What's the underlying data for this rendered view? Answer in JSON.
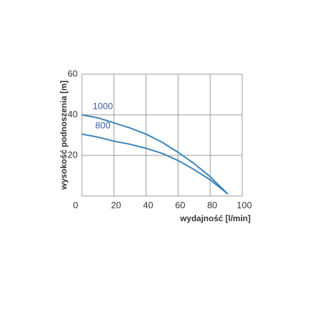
{
  "chart_data": {
    "type": "line",
    "y_label": "wysokość podnoszenia [m]",
    "x_label": "wydajność  [l/min]",
    "x": [
      0,
      10,
      20,
      30,
      40,
      50,
      60,
      70,
      80,
      91
    ],
    "series": [
      {
        "name": "1000",
        "color": "#3b82b8",
        "values": [
          40,
          38.5,
          36,
          33.5,
          30.5,
          26.5,
          21.5,
          16,
          9.5,
          1
        ]
      },
      {
        "name": "800",
        "color": "#3b82b8",
        "values": [
          30.5,
          29,
          27,
          25.5,
          23.5,
          21,
          17.5,
          13,
          8,
          1
        ]
      }
    ],
    "xlim": [
      0,
      100
    ],
    "xticks": [
      0,
      20,
      40,
      60,
      80,
      100
    ],
    "ylim": [
      0,
      60
    ],
    "yticks": [
      20,
      40,
      60
    ],
    "grid": true,
    "label_color": "#3d5fa8"
  }
}
